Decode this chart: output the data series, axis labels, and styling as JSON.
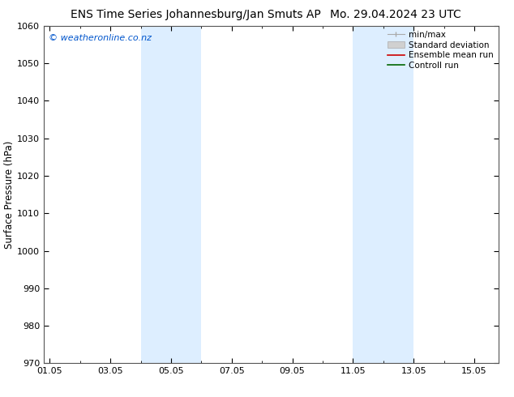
{
  "title_left": "ENS Time Series Johannesburg/Jan Smuts AP",
  "title_right": "Mo. 29.04.2024 23 UTC",
  "ylabel": "Surface Pressure (hPa)",
  "ylim": [
    970,
    1060
  ],
  "yticks": [
    970,
    980,
    990,
    1000,
    1010,
    1020,
    1030,
    1040,
    1050,
    1060
  ],
  "xtick_labels": [
    "01.05",
    "03.05",
    "05.05",
    "07.05",
    "09.05",
    "11.05",
    "13.05",
    "15.05"
  ],
  "xtick_positions": [
    0,
    2,
    4,
    6,
    8,
    10,
    12,
    14
  ],
  "xlim": [
    -0.2,
    14.8
  ],
  "shaded_regions": [
    {
      "start": 3.0,
      "end": 3.85
    },
    {
      "start": 3.85,
      "end": 5.0
    },
    {
      "start": 10.0,
      "end": 10.85
    },
    {
      "start": 10.85,
      "end": 12.0
    }
  ],
  "shaded_color": "#ddeeff",
  "watermark_text": "© weatheronline.co.nz",
  "watermark_color": "#0055cc",
  "bg_color": "#ffffff",
  "title_fontsize": 10,
  "axis_label_fontsize": 8.5,
  "tick_fontsize": 8,
  "legend_fontsize": 7.5
}
